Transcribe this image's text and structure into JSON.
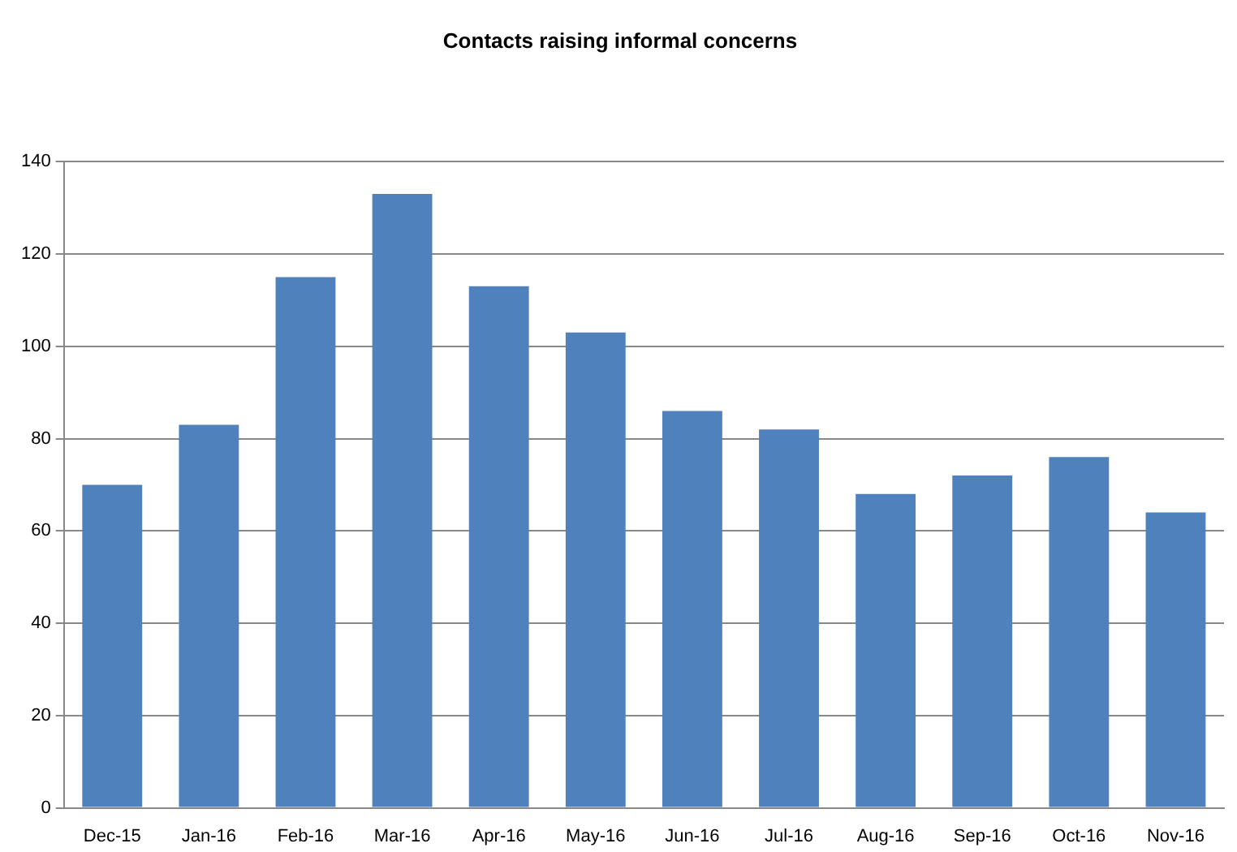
{
  "chart_data": {
    "type": "bar",
    "title": "Contacts raising informal concerns",
    "categories": [
      "Dec-15",
      "Jan-16",
      "Feb-16",
      "Mar-16",
      "Apr-16",
      "May-16",
      "Jun-16",
      "Jul-16",
      "Aug-16",
      "Sep-16",
      "Oct-16",
      "Nov-16"
    ],
    "values": [
      70,
      83,
      115,
      133,
      113,
      103,
      86,
      82,
      68,
      72,
      76,
      64
    ],
    "color": "#4f81bd",
    "ylim": [
      0,
      140
    ],
    "yticks": [
      0,
      20,
      40,
      60,
      80,
      100,
      120,
      140
    ],
    "grid": "y",
    "legend": false
  }
}
